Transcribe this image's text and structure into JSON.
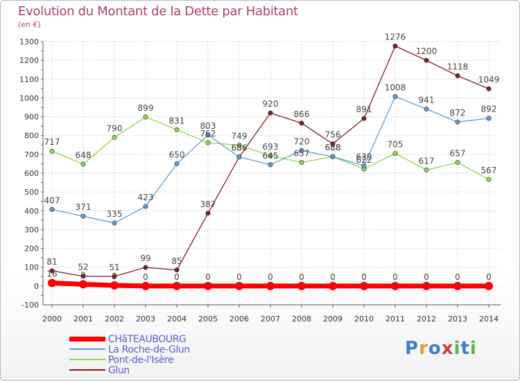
{
  "header": {
    "title": "Evolution du Montant de la Dette par Habitant",
    "unit": "(en €)"
  },
  "logo": {
    "text": "Proxiti",
    "colors": [
      "#3a7fd0",
      "#e89a2a",
      "#3a7fd0",
      "#d63a3a",
      "#5ab24a",
      "#3a7fd0",
      "#5ab24a"
    ]
  },
  "chart_data": {
    "type": "line",
    "title": "Evolution du Montant de la Dette par Habitant",
    "ylabel": "(en €)",
    "xlabel": "",
    "x": [
      "2000",
      "2001",
      "2002",
      "2003",
      "2004",
      "2005",
      "2006",
      "2007",
      "2008",
      "2009",
      "2010",
      "2011",
      "2012",
      "2013",
      "2014"
    ],
    "ylim": [
      -100,
      1300
    ],
    "yticks": [
      -100,
      0,
      100,
      200,
      300,
      400,
      500,
      600,
      700,
      800,
      900,
      1000,
      1100,
      1200,
      1300
    ],
    "grid": true,
    "legend_position": "bottom-left",
    "series": [
      {
        "name": "CHâTEAUBOURG",
        "color": "#ff0000",
        "values": [
          16,
          9,
          3,
          0,
          0,
          0,
          0,
          0,
          0,
          0,
          0,
          0,
          0,
          0,
          0
        ],
        "labels": [
          "16",
          "9",
          "3",
          "0",
          "0",
          "0",
          "0",
          "0",
          "0",
          "0",
          "0",
          "0",
          "0",
          "0",
          "0"
        ]
      },
      {
        "name": "La Roche-de-Glun",
        "color": "#5b9bd5",
        "values": [
          407,
          371,
          335,
          423,
          650,
          803,
          686,
          645,
          720,
          688,
          639,
          1008,
          941,
          872,
          892
        ],
        "labels": [
          "407",
          "371",
          "335",
          "423",
          "650",
          "803",
          "686",
          "645",
          "720",
          "688",
          "639",
          "1008",
          "941",
          "872",
          "892"
        ]
      },
      {
        "name": "Pont-de-l'Isère",
        "color": "#8fd64a",
        "values": [
          717,
          648,
          790,
          899,
          831,
          762,
          749,
          693,
          657,
          688,
          622,
          705,
          617,
          657,
          567
        ],
        "labels": [
          "717",
          "648",
          "790",
          "899",
          "831",
          "762",
          "749",
          "693",
          "657",
          "688",
          "622",
          "705",
          "617",
          "657",
          "567"
        ]
      },
      {
        "name": "Glun",
        "color": "#7a1f1f",
        "values": [
          81,
          52,
          51,
          99,
          85,
          387,
          686,
          920,
          866,
          756,
          891,
          1276,
          1200,
          1118,
          1049
        ],
        "labels": [
          "81",
          "52",
          "51",
          "99",
          "85",
          "387",
          "686",
          "920",
          "866",
          "756",
          "891",
          "1276",
          "1200",
          "1118",
          "1049"
        ]
      }
    ]
  }
}
